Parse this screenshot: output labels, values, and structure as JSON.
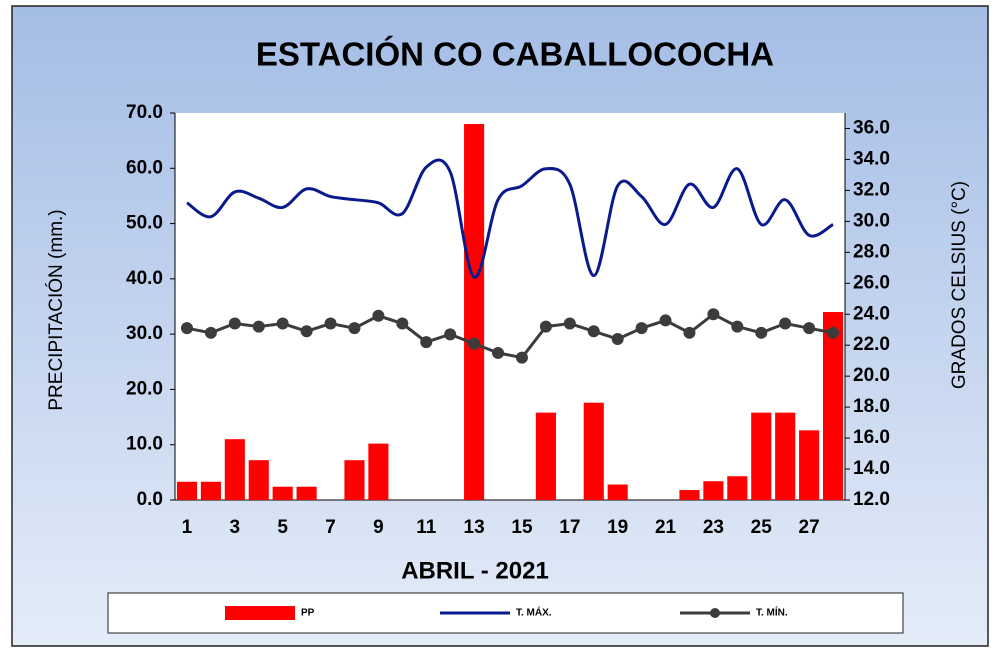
{
  "chart_data": {
    "type": "bar",
    "title": "ESTACIÓN CO CABALLOCOCHA",
    "x_label": "ABRIL  - 2021",
    "y_label": "PRECIPITACIÓN (mm.)",
    "y2_label": "GRADOS CELSIUS (°C)",
    "categories": [
      "1",
      null,
      "3",
      null,
      "5",
      null,
      "7",
      null,
      "9",
      null,
      "11",
      null,
      "13",
      null,
      "15",
      null,
      "17",
      null,
      "19",
      null,
      "21",
      null,
      "23",
      null,
      "25",
      null,
      "27",
      null
    ],
    "series": [
      {
        "name": "PP",
        "type": "bar",
        "color": "#ff0000",
        "values": [
          3.3,
          3.3,
          11.0,
          7.2,
          2.4,
          2.4,
          0,
          7.2,
          10.2,
          0,
          0,
          0,
          68.0,
          0,
          0,
          15.8,
          0,
          17.6,
          2.8,
          0,
          0,
          1.8,
          3.4,
          4.3,
          15.8,
          15.8,
          12.6,
          34.0
        ]
      },
      {
        "name": "T. MÁX.",
        "type": "line",
        "axis": "y2",
        "color": "#0a1a8c",
        "values": [
          31.2,
          30.3,
          31.9,
          31.5,
          30.9,
          32.1,
          31.6,
          31.4,
          31.2,
          30.5,
          33.5,
          33.2,
          26.4,
          31.4,
          32.3,
          33.4,
          32.4,
          26.5,
          32.3,
          31.6,
          29.8,
          32.4,
          30.9,
          33.4,
          29.8,
          31.4,
          29.1,
          29.8
        ]
      },
      {
        "name": "T. MÍN.",
        "type": "line",
        "axis": "y2",
        "marker": true,
        "color": "#3c3c3c",
        "values": [
          23.1,
          22.8,
          23.4,
          23.2,
          23.4,
          22.9,
          23.4,
          23.1,
          23.9,
          23.4,
          22.2,
          22.7,
          22.1,
          21.5,
          21.2,
          23.2,
          23.4,
          22.9,
          22.4,
          23.1,
          23.6,
          22.8,
          24.0,
          23.2,
          22.8,
          23.4,
          23.1,
          22.8
        ]
      }
    ],
    "ylim": [
      0,
      70
    ],
    "yticks": [
      {
        "value": 0,
        "label": "0.0"
      },
      {
        "value": 10,
        "label": "10.0"
      },
      {
        "value": 20,
        "label": "20.0"
      },
      {
        "value": 30,
        "label": "30.0"
      },
      {
        "value": 40,
        "label": "40.0"
      },
      {
        "value": 50,
        "label": "50.0"
      },
      {
        "value": 60,
        "label": "60.0"
      },
      {
        "value": 70,
        "label": "70.0"
      }
    ],
    "y2lim": [
      12,
      37
    ],
    "y2ticks": [
      {
        "value": 12,
        "label": "12.0"
      },
      {
        "value": 14,
        "label": "14.0"
      },
      {
        "value": 16,
        "label": "16.0"
      },
      {
        "value": 18,
        "label": "18.0"
      },
      {
        "value": 20,
        "label": "20.0"
      },
      {
        "value": 22,
        "label": "22.0"
      },
      {
        "value": 24,
        "label": "24.0"
      },
      {
        "value": 26,
        "label": "26.0"
      },
      {
        "value": 28,
        "label": "28.0"
      },
      {
        "value": 30,
        "label": "30.0"
      },
      {
        "value": 32,
        "label": "32.0"
      },
      {
        "value": 34,
        "label": "34.0"
      },
      {
        "value": 36,
        "label": "36.0"
      }
    ],
    "legend": "bottom"
  }
}
